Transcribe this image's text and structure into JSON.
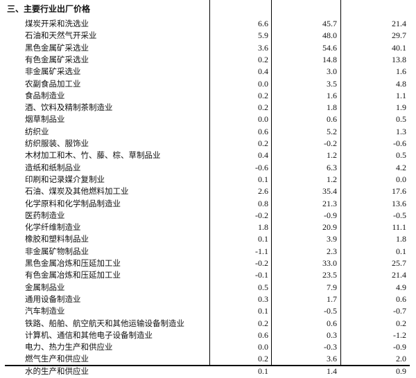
{
  "section_title": "三、主要行业出厂价格",
  "rows": [
    {
      "name": "煤炭开采和洗选业",
      "values": [
        "6.6",
        "45.7",
        "21.4"
      ]
    },
    {
      "name": "石油和天然气开采业",
      "values": [
        "5.9",
        "48.0",
        "29.7"
      ]
    },
    {
      "name": "黑色金属矿采选业",
      "values": [
        "3.6",
        "54.6",
        "40.1"
      ]
    },
    {
      "name": "有色金属矿采选业",
      "values": [
        "0.2",
        "14.8",
        "13.8"
      ]
    },
    {
      "name": "非金属矿采选业",
      "values": [
        "0.4",
        "3.0",
        "1.6"
      ]
    },
    {
      "name": "农副食品加工业",
      "values": [
        "0.0",
        "3.5",
        "4.8"
      ]
    },
    {
      "name": "食品制造业",
      "values": [
        "0.2",
        "1.6",
        "1.1"
      ]
    },
    {
      "name": "酒、饮料及精制茶制造业",
      "values": [
        "0.2",
        "1.8",
        "1.9"
      ]
    },
    {
      "name": "烟草制品业",
      "values": [
        "0.0",
        "0.6",
        "0.5"
      ]
    },
    {
      "name": "纺织业",
      "values": [
        "0.6",
        "5.2",
        "1.3"
      ]
    },
    {
      "name": "纺织服装、服饰业",
      "values": [
        "0.2",
        "-0.2",
        "-0.6"
      ]
    },
    {
      "name": "木材加工和木、竹、藤、棕、草制品业",
      "values": [
        "0.4",
        "1.2",
        "0.5"
      ]
    },
    {
      "name": "造纸和纸制品业",
      "values": [
        "-0.6",
        "6.3",
        "4.2"
      ]
    },
    {
      "name": "印刷和记录媒介复制业",
      "values": [
        "0.1",
        "1.2",
        "0.0"
      ]
    },
    {
      "name": "石油、煤炭及其他燃料加工业",
      "values": [
        "2.6",
        "35.4",
        "17.6"
      ]
    },
    {
      "name": "化学原料和化学制品制造业",
      "values": [
        "0.8",
        "21.3",
        "13.6"
      ]
    },
    {
      "name": "医药制造业",
      "values": [
        "-0.2",
        "-0.9",
        "-0.5"
      ]
    },
    {
      "name": "化学纤维制造业",
      "values": [
        "1.8",
        "20.9",
        "11.1"
      ]
    },
    {
      "name": "橡胶和塑料制品业",
      "values": [
        "0.1",
        "3.9",
        "1.8"
      ]
    },
    {
      "name": "非金属矿物制品业",
      "values": [
        "-1.1",
        "2.3",
        "0.1"
      ]
    },
    {
      "name": "黑色金属冶炼和压延加工业",
      "values": [
        "-0.2",
        "33.0",
        "25.7"
      ]
    },
    {
      "name": "有色金属冶炼和压延加工业",
      "values": [
        "-0.1",
        "23.5",
        "21.4"
      ]
    },
    {
      "name": "金属制品业",
      "values": [
        "0.5",
        "7.9",
        "4.9"
      ]
    },
    {
      "name": "通用设备制造业",
      "values": [
        "0.3",
        "1.7",
        "0.6"
      ]
    },
    {
      "name": "汽车制造业",
      "values": [
        "0.1",
        "-0.5",
        "-0.7"
      ]
    },
    {
      "name": "铁路、船舶、航空航天和其他运输设备制造业",
      "values": [
        "0.2",
        "0.6",
        "0.2"
      ]
    },
    {
      "name": "计算机、通信和其他电子设备制造业",
      "values": [
        "0.6",
        "0.3",
        "-1.2"
      ]
    },
    {
      "name": "电力、热力生产和供应业",
      "values": [
        "0.0",
        "-0.3",
        "-0.9"
      ]
    },
    {
      "name": "燃气生产和供应业",
      "values": [
        "0.2",
        "3.6",
        "2.0"
      ]
    },
    {
      "name": "水的生产和供应业",
      "values": [
        "0.1",
        "1.4",
        "0.9"
      ]
    }
  ]
}
